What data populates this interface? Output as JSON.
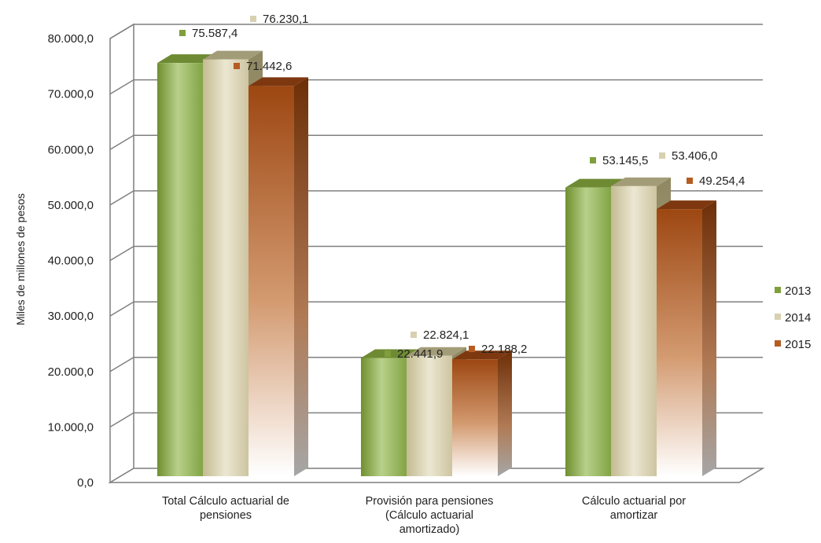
{
  "chart_data": {
    "type": "bar",
    "title": "",
    "xlabel": "",
    "ylabel": "Miles de millones de pesos",
    "ylim": [
      0,
      80000
    ],
    "yticks": [
      "0,0",
      "10.000,0",
      "20.000,0",
      "30.000,0",
      "40.000,0",
      "50.000,0",
      "60.000,0",
      "70.000,0",
      "80.000,0"
    ],
    "categories": [
      [
        "Total Cálculo actuarial de",
        "pensiones"
      ],
      [
        "Provisión para pensiones",
        "(Cálculo actuarial",
        "amortizado)"
      ],
      [
        "Cálculo actuarial por",
        "amortizar"
      ]
    ],
    "series": [
      {
        "name": "2013",
        "color": "#7f9f3c",
        "values": [
          75587.4,
          22441.9,
          53145.5
        ],
        "labels": [
          "75.587,4",
          "22.441,9",
          "53.145,5"
        ]
      },
      {
        "name": "2014",
        "color": "#cfc6a0",
        "values": [
          76230.1,
          22824.1,
          53406.0
        ],
        "labels": [
          "76.230,1",
          "22.824,1",
          "53.406,0"
        ]
      },
      {
        "name": "2015",
        "color": "#a5501e",
        "values": [
          71442.6,
          22188.2,
          49254.4
        ],
        "labels": [
          "71.442,6",
          "22.188,2",
          "49.254,4"
        ]
      }
    ],
    "grid": true,
    "legend_position": "right"
  }
}
